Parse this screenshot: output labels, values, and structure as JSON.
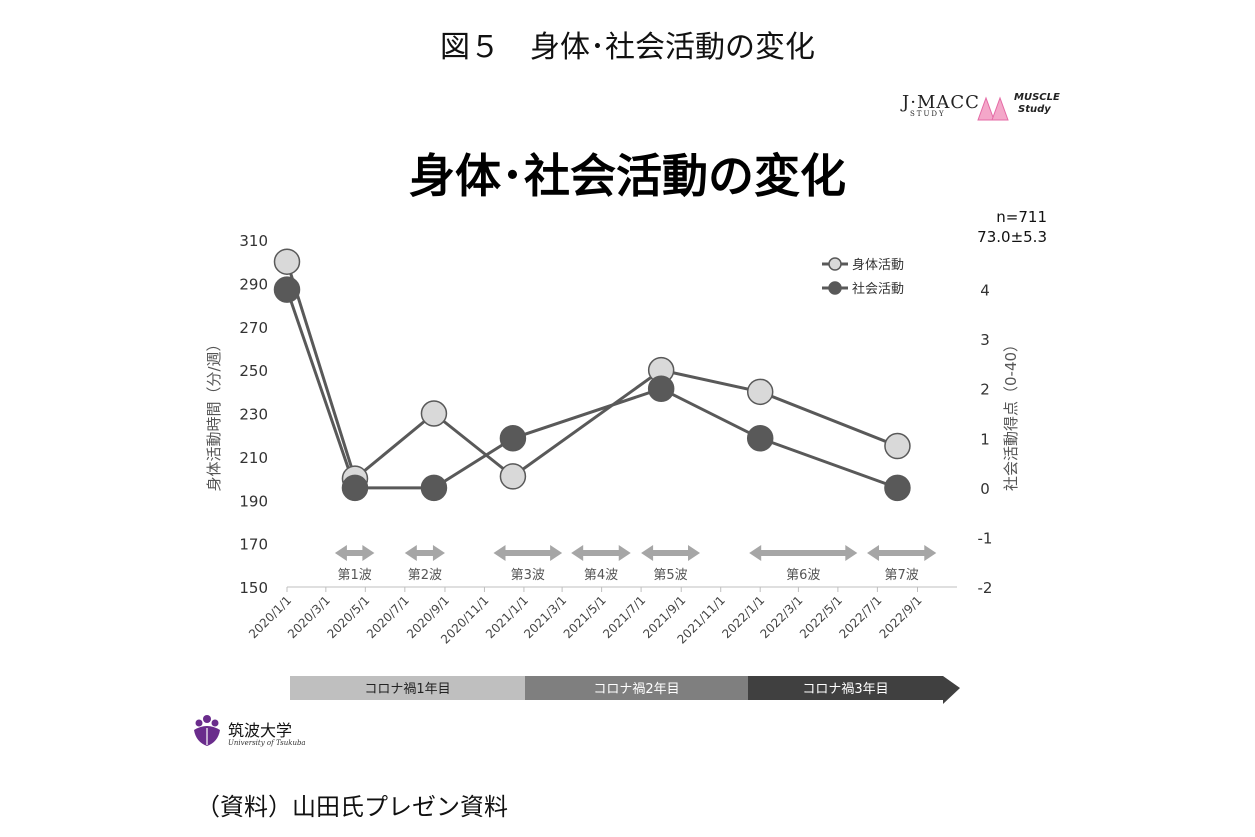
{
  "figure_title": "図５　身体･社会活動の変化",
  "slide_title": "身体･社会活動の変化",
  "logos": {
    "jmacc": "J·MACC",
    "jmacc_sub": "STUDY",
    "muscle": "MUSCLE",
    "muscle_sub": "Study",
    "university": "筑波大学",
    "university_en": "University of Tsukuba"
  },
  "sample": {
    "n": "n=711",
    "age": "73.0±5.3"
  },
  "source": "（資料）山田氏プレゼン資料",
  "colors": {
    "physical": "#d9d9d9",
    "social": "#595959",
    "line": "#595959"
  },
  "chart_data": {
    "type": "line",
    "title": "身体･社会活動の変化",
    "x_tick_labels": [
      "2020/1/1",
      "2020/3/1",
      "2020/5/1",
      "2020/7/1",
      "2020/9/1",
      "2020/11/1",
      "2021/1/1",
      "2021/3/1",
      "2021/5/1",
      "2021/7/1",
      "2021/9/1",
      "2021/11/1",
      "2022/1/1",
      "2022/3/1",
      "2022/5/1",
      "2022/7/1",
      "2022/9/1"
    ],
    "y_left": {
      "label": "身体活動時間（分/週）",
      "range": [
        150,
        310
      ],
      "ticks": [
        150,
        170,
        190,
        210,
        230,
        250,
        270,
        290,
        310
      ]
    },
    "y_right": {
      "label": "社会活動得点（0-40）",
      "range": [
        -2,
        5
      ],
      "ticks": [
        -2,
        -1,
        0,
        1,
        2,
        3,
        4
      ]
    },
    "series": [
      {
        "name": "身体活動",
        "axis": "left",
        "x": [
          "2020/1/1",
          "2020/4/15",
          "2020/8/15",
          "2020/12/15",
          "2021/8/1",
          "2022/1/1",
          "2022/8/1"
        ],
        "values": [
          300,
          200,
          230,
          201,
          250,
          240,
          215
        ]
      },
      {
        "name": "社会活動",
        "axis": "right",
        "x": [
          "2020/1/1",
          "2020/4/15",
          "2020/8/15",
          "2020/12/15",
          "2021/8/1",
          "2022/1/1",
          "2022/8/1"
        ],
        "values": [
          4,
          0,
          0,
          1,
          2,
          1,
          0
        ]
      }
    ],
    "waves": [
      {
        "label": "第1波",
        "start": "2020/3/15",
        "end": "2020/5/15"
      },
      {
        "label": "第2波",
        "start": "2020/7/1",
        "end": "2020/9/1"
      },
      {
        "label": "第3波",
        "start": "2020/11/15",
        "end": "2021/3/1"
      },
      {
        "label": "第4波",
        "start": "2021/3/15",
        "end": "2021/6/15"
      },
      {
        "label": "第5波",
        "start": "2021/7/1",
        "end": "2021/9/30"
      },
      {
        "label": "第6波",
        "start": "2021/12/15",
        "end": "2022/5/31"
      },
      {
        "label": "第7波",
        "start": "2022/6/15",
        "end": "2022/9/30"
      }
    ],
    "periods": [
      {
        "label": "コロナ禍1年目",
        "color": "#bfbfbf"
      },
      {
        "label": "コロナ禍2年目",
        "color": "#7f7f7f"
      },
      {
        "label": "コロナ禍3年目",
        "color": "#404040"
      }
    ],
    "legend": "top-right",
    "grid": false
  }
}
